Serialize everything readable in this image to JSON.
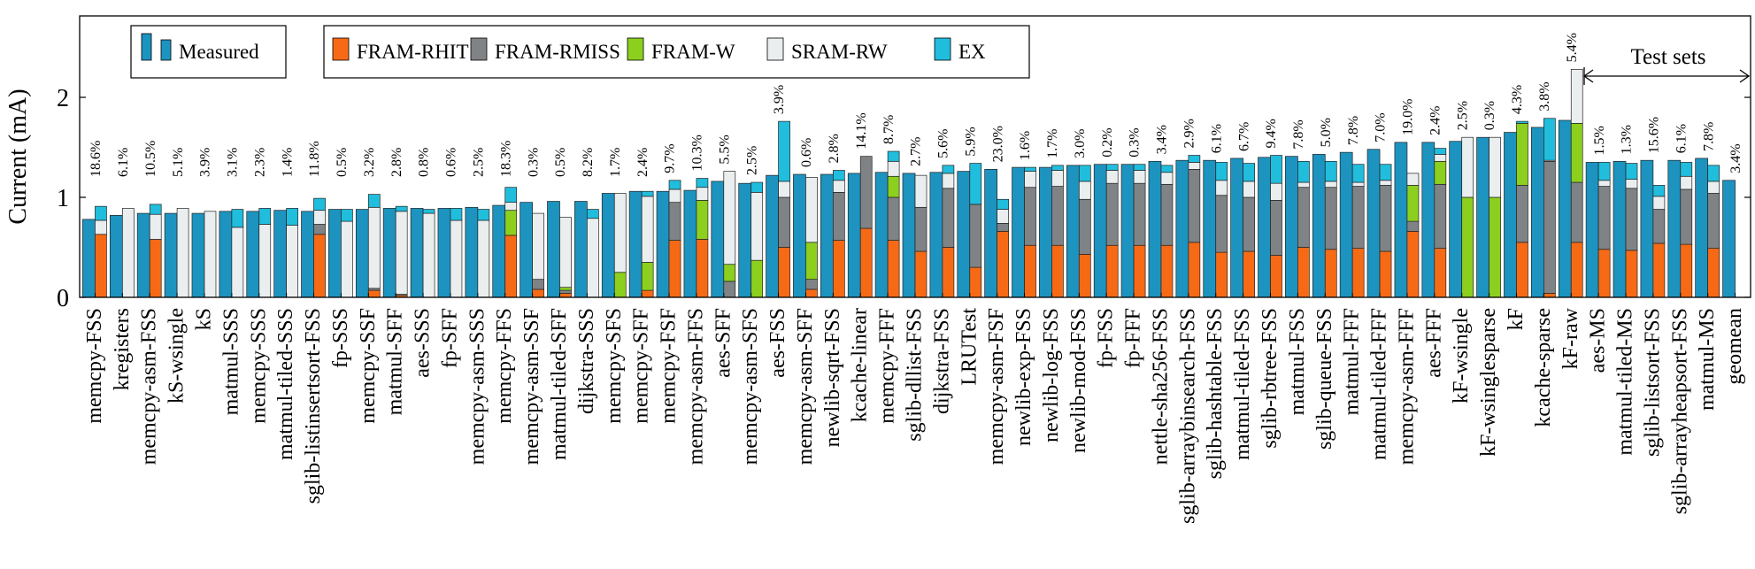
{
  "chart_data": {
    "type": "bar",
    "ylabel": "Current (mA)",
    "ylim": [
      0,
      2.8
    ],
    "yticks": [
      0,
      1,
      2
    ],
    "legend_measured": [
      "",
      "Measured"
    ],
    "legend_components": [
      "FRAM-RHIT",
      "FRAM-RMISS",
      "FRAM-W",
      "SRAM-RW",
      "EX"
    ],
    "test_sets_label": "Test sets",
    "test_sets_start_index": 64,
    "colors": {
      "measured": "#1d93bf",
      "FRAM-RHIT": "#f76a15",
      "FRAM-RMISS": "#808385",
      "FRAM-W": "#8ccf1f",
      "SRAM-RW": "#eaeeee",
      "EX": "#21bddd"
    },
    "categories": [
      "memcpy-FSS",
      "kregisters",
      "memcpy-asm-FSS",
      "kS-wsingle",
      "kS",
      "matmul-SSS",
      "memcpy-SSS",
      "matmul-tiled-SSS",
      "sglib-listinsertsort-FSS",
      "fp-SSS",
      "memcpy-SSF",
      "matmul-SFF",
      "aes-SSS",
      "fp-SFF",
      "memcpy-asm-SSS",
      "memcpy-FFS",
      "memcpy-asm-SSF",
      "matmul-tiled-SFF",
      "dijkstra-SSS",
      "memcpy-SFS",
      "memcpy-SFF",
      "memcpy-FSF",
      "memcpy-asm-FFS",
      "aes-SFF",
      "memcpy-asm-SFS",
      "aes-FSS",
      "memcpy-asm-SFF",
      "newlib-sqrt-FSS",
      "kcache-linear",
      "memcpy-FFF",
      "sglib-dllist-FSS",
      "dijkstra-FSS",
      "LRUTest",
      "memcpy-asm-FSF",
      "newlib-exp-FSS",
      "newlib-log-FSS",
      "newlib-mod-FSS",
      "fp-FSS",
      "fp-FFF",
      "nettle-sha256-FSS",
      "sglib-arraybinsearch-FSS",
      "sglib-hashtable-FSS",
      "matmul-tiled-FSS",
      "sglib-rbtree-FSS",
      "matmul-FSS",
      "sglib-queue-FSS",
      "matmul-FFF",
      "matmul-tiled-FFF",
      "memcpy-asm-FFF",
      "aes-FFF",
      "kF-wsingle",
      "kF-wsinglesparse",
      "kF",
      "kcache-sparse",
      "kF-raw",
      "aes-MS",
      "matmul-tiled-MS",
      "sglib-listsort-FSS",
      "sglib-arrayheapsort-FSS",
      "matmul-MS",
      "geomean"
    ],
    "measured": [
      0.78,
      0.82,
      0.84,
      0.84,
      0.84,
      0.86,
      0.86,
      0.87,
      0.86,
      0.88,
      0.88,
      0.89,
      0.89,
      0.89,
      0.9,
      0.92,
      0.95,
      0.96,
      0.96,
      1.04,
      1.06,
      1.06,
      1.07,
      1.16,
      1.14,
      1.22,
      1.23,
      1.23,
      1.24,
      1.25,
      1.24,
      1.25,
      1.26,
      1.28,
      1.3,
      1.3,
      1.32,
      1.33,
      1.33,
      1.36,
      1.37,
      1.37,
      1.39,
      1.4,
      1.41,
      1.43,
      1.45,
      1.48,
      1.55,
      1.55,
      1.56,
      1.6,
      1.65,
      1.7,
      1.77,
      1.35,
      1.36,
      1.37,
      1.37,
      1.39,
      1.17
    ],
    "series": [
      {
        "name": "FRAM-RHIT",
        "values": [
          0.63,
          0,
          0.58,
          0,
          0,
          0,
          0,
          0,
          0.63,
          0,
          0.07,
          0.02,
          0,
          0,
          0,
          0.62,
          0.08,
          0.04,
          0,
          0,
          0.07,
          0.57,
          0.58,
          0,
          0,
          0.5,
          0.08,
          0.57,
          0.69,
          0.57,
          0.46,
          0.5,
          0.3,
          0.66,
          0.52,
          0.52,
          0.43,
          0.52,
          0.52,
          0.52,
          0.55,
          0.45,
          0.46,
          0.42,
          0.5,
          0.48,
          0.49,
          0.46,
          0.66,
          0.49,
          0,
          0,
          0.55,
          0.04,
          0.55,
          0.48,
          0.47,
          0.54,
          0.53,
          0.49,
          0
        ]
      },
      {
        "name": "FRAM-RMISS",
        "values": [
          0,
          0,
          0,
          0,
          0,
          0,
          0,
          0,
          0.1,
          0,
          0.02,
          0.01,
          0,
          0,
          0,
          0,
          0.1,
          0.03,
          0,
          0,
          0,
          0.38,
          0,
          0.16,
          0,
          0.5,
          0.1,
          0.48,
          0.72,
          0.43,
          0.44,
          0.59,
          0.63,
          0.08,
          0.58,
          0.59,
          0.55,
          0.62,
          0.62,
          0.61,
          0.73,
          0.57,
          0.54,
          0.55,
          0.6,
          0.62,
          0.62,
          0.66,
          0.1,
          0.64,
          0,
          0,
          0.57,
          1.32,
          0.6,
          0.63,
          0.62,
          0.34,
          0.55,
          0.55,
          0
        ]
      },
      {
        "name": "FRAM-W",
        "values": [
          0,
          0,
          0,
          0,
          0,
          0,
          0,
          0,
          0,
          0,
          0,
          0,
          0,
          0,
          0,
          0.25,
          0,
          0.03,
          0,
          0.25,
          0.28,
          0,
          0.39,
          0.17,
          0.37,
          0,
          0.37,
          0,
          0,
          0.21,
          0,
          0,
          0,
          0,
          0,
          0,
          0,
          0,
          0,
          0,
          0,
          0,
          0,
          0,
          0,
          0,
          0,
          0,
          0.36,
          0.23,
          1.0,
          1.0,
          0.62,
          0,
          0.59,
          0,
          0,
          0,
          0,
          0,
          0
        ]
      },
      {
        "name": "SRAM-RW",
        "values": [
          0.14,
          0.89,
          0.25,
          0.89,
          0.86,
          0.7,
          0.73,
          0.72,
          0.14,
          0.76,
          0.81,
          0.83,
          0.84,
          0.77,
          0.77,
          0.08,
          0.66,
          0.7,
          0.79,
          0.79,
          0.66,
          0.13,
          0.13,
          0.93,
          0.68,
          0.16,
          0.65,
          0.12,
          0,
          0.15,
          0.32,
          0.15,
          0,
          0.14,
          0.16,
          0.16,
          0.18,
          0.13,
          0.13,
          0.12,
          0.07,
          0.15,
          0.16,
          0.17,
          0.05,
          0.06,
          0.04,
          0.05,
          0.12,
          0.07,
          0.6,
          0.6,
          0,
          0.01,
          0.54,
          0.06,
          0.09,
          0.13,
          0.13,
          0.12,
          0
        ]
      },
      {
        "name": "EX",
        "values": [
          0.14,
          0,
          0.1,
          0,
          0,
          0.18,
          0.16,
          0.17,
          0.12,
          0.12,
          0.13,
          0.05,
          0.04,
          0.12,
          0.11,
          0.15,
          0,
          0,
          0.09,
          0,
          0.05,
          0.09,
          0.09,
          0,
          0.1,
          0.6,
          0,
          0.1,
          0,
          0.1,
          0,
          0.08,
          0.41,
          0.1,
          0.04,
          0.05,
          0.16,
          0.06,
          0.06,
          0.07,
          0.07,
          0.18,
          0.18,
          0.28,
          0.21,
          0.2,
          0.18,
          0.16,
          0,
          0.06,
          0,
          0,
          0.02,
          0.42,
          0,
          0.18,
          0.16,
          0.11,
          0.14,
          0.16,
          0
        ]
      }
    ],
    "percent_labels": [
      "18.6%",
      "6.1%",
      "10.5%",
      "5.1%",
      "3.9%",
      "3.1%",
      "2.3%",
      "1.4%",
      "11.8%",
      "0.5%",
      "3.2%",
      "2.8%",
      "0.8%",
      "0.6%",
      "2.5%",
      "18.3%",
      "0.3%",
      "0.5%",
      "8.2%",
      "1.7%",
      "2.4%",
      "9.7%",
      "10.3%",
      "5.5%",
      "2.5%",
      "3.9%",
      "0.6%",
      "2.8%",
      "14.1%",
      "8.7%",
      "2.7%",
      "5.6%",
      "5.9%",
      "23.0%",
      "1.6%",
      "1.7%",
      "3.0%",
      "0.2%",
      "0.3%",
      "3.4%",
      "2.9%",
      "6.1%",
      "6.7%",
      "9.4%",
      "7.8%",
      "5.0%",
      "7.8%",
      "7.0%",
      "19.0%",
      "2.4%",
      "2.5%",
      "0.3%",
      "4.3%",
      "3.8%",
      "5.4%",
      "1.5%",
      "1.3%",
      "15.6%",
      "6.1%",
      "7.8%",
      "3.4%"
    ]
  }
}
